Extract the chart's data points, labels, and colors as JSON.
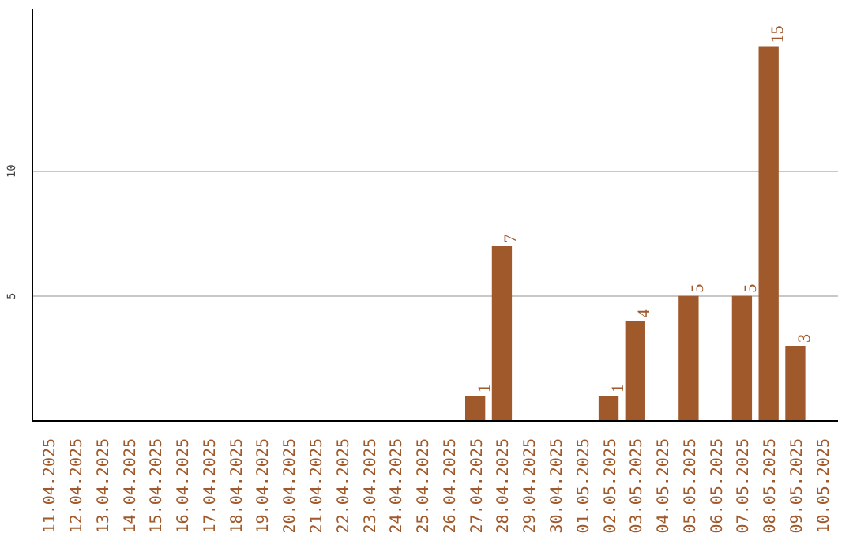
{
  "chart_data": {
    "type": "bar",
    "categories": [
      "11.04.2025",
      "12.04.2025",
      "13.04.2025",
      "14.04.2025",
      "15.04.2025",
      "16.04.2025",
      "17.04.2025",
      "18.04.2025",
      "19.04.2025",
      "20.04.2025",
      "21.04.2025",
      "22.04.2025",
      "23.04.2025",
      "24.04.2025",
      "25.04.2025",
      "26.04.2025",
      "27.04.2025",
      "28.04.2025",
      "29.04.2025",
      "30.04.2025",
      "01.05.2025",
      "02.05.2025",
      "03.05.2025",
      "04.05.2025",
      "05.05.2025",
      "06.05.2025",
      "07.05.2025",
      "08.05.2025",
      "09.05.2025",
      "10.05.2025"
    ],
    "values": [
      0,
      0,
      0,
      0,
      0,
      0,
      0,
      0,
      0,
      0,
      0,
      0,
      0,
      0,
      0,
      0,
      1,
      7,
      0,
      0,
      0,
      1,
      4,
      0,
      5,
      0,
      5,
      15,
      3,
      0
    ],
    "value_labels": [
      null,
      null,
      null,
      null,
      null,
      null,
      null,
      null,
      null,
      null,
      null,
      null,
      null,
      null,
      null,
      null,
      "1",
      "7",
      null,
      null,
      null,
      "1",
      "4",
      null,
      "5",
      null,
      "5",
      "15",
      "3",
      null
    ],
    "color": "#a0592a",
    "ylim": [
      0,
      16.5
    ],
    "yticks": [
      5,
      10
    ],
    "grid": "y"
  }
}
